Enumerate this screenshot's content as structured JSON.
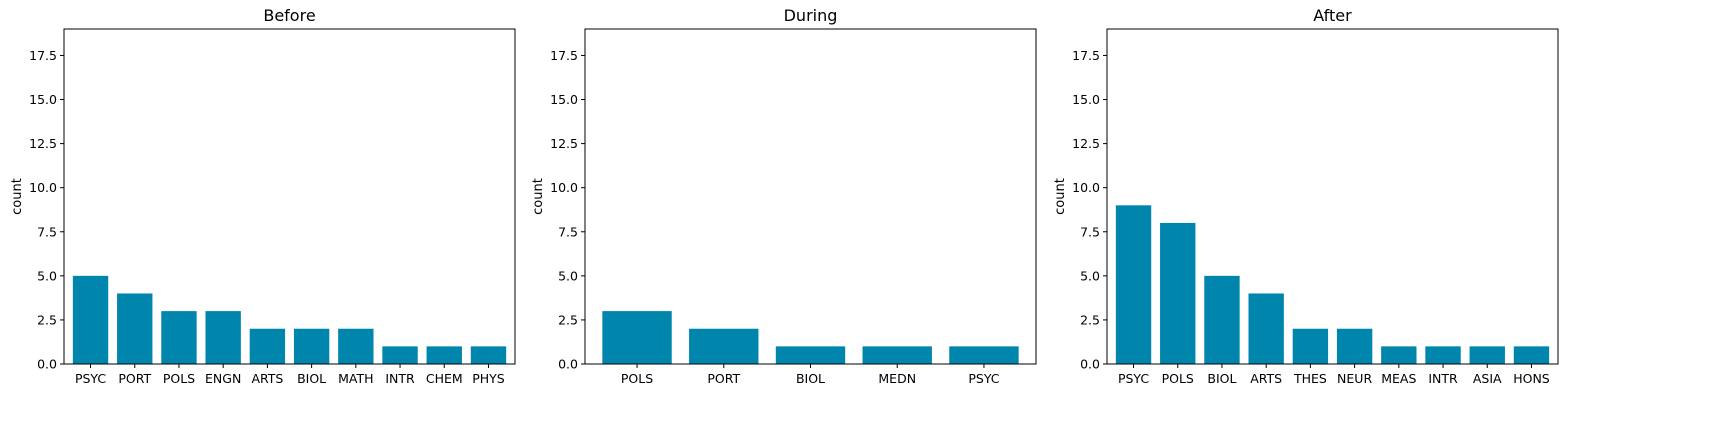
{
  "chart_data": [
    {
      "type": "bar",
      "title": "Before",
      "xlabel": "",
      "ylabel": "count",
      "ylim": [
        0,
        19
      ],
      "yticks": [
        "0.0",
        "2.5",
        "5.0",
        "7.5",
        "10.0",
        "12.5",
        "15.0",
        "17.5"
      ],
      "grid": false,
      "color": "#0085ad",
      "categories": [
        "PSYC",
        "PORT",
        "POLS",
        "ENGN",
        "ARTS",
        "BIOL",
        "MATH",
        "INTR",
        "CHEM",
        "PHYS"
      ],
      "values": [
        5,
        4,
        3,
        3,
        2,
        2,
        2,
        1,
        1,
        1
      ]
    },
    {
      "type": "bar",
      "title": "During",
      "xlabel": "",
      "ylabel": "count",
      "ylim": [
        0,
        19
      ],
      "yticks": [
        "0.0",
        "2.5",
        "5.0",
        "7.5",
        "10.0",
        "12.5",
        "15.0",
        "17.5"
      ],
      "grid": false,
      "color": "#0085ad",
      "categories": [
        "POLS",
        "PORT",
        "BIOL",
        "MEDN",
        "PSYC"
      ],
      "values": [
        3,
        2,
        1,
        1,
        1
      ]
    },
    {
      "type": "bar",
      "title": "After",
      "xlabel": "",
      "ylabel": "count",
      "ylim": [
        0,
        19
      ],
      "yticks": [
        "0.0",
        "2.5",
        "5.0",
        "7.5",
        "10.0",
        "12.5",
        "15.0",
        "17.5"
      ],
      "grid": false,
      "color": "#0085ad",
      "categories": [
        "PSYC",
        "POLS",
        "BIOL",
        "ARTS",
        "THES",
        "NEUR",
        "MEAS",
        "INTR",
        "ASIA",
        "HONS"
      ],
      "values": [
        9,
        8,
        5,
        4,
        2,
        2,
        1,
        1,
        1,
        1
      ]
    }
  ]
}
